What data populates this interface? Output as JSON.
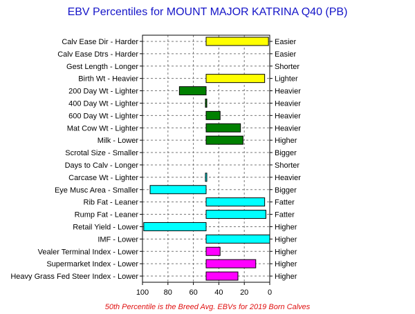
{
  "chart_data": {
    "type": "bar",
    "title": "EBV Percentiles for MOUNT MAJOR KATRINA Q40 (PB)",
    "footnote": "50th Percentile is the Breed Avg. EBVs for 2019 Born Calves",
    "xlim": [
      100,
      0
    ],
    "xticks": [
      100,
      80,
      60,
      40,
      20,
      0
    ],
    "baseline": 50,
    "grid": true,
    "colors": {
      "calving": "#ffff00",
      "growth": "#008000",
      "carcase": "#00ffff",
      "index": "#ff00ff"
    },
    "traits": [
      {
        "left": "Calv Ease Dir - Harder",
        "right": "Easier",
        "value": 1,
        "group": "calving"
      },
      {
        "left": "Calv Ease Dtrs - Harder",
        "right": "Easier",
        "value": null,
        "group": "calving"
      },
      {
        "left": "Gest Length - Longer",
        "right": "Shorter",
        "value": null,
        "group": "calving"
      },
      {
        "left": "Birth Wt - Heavier",
        "right": "Lighter",
        "value": 4,
        "group": "calving"
      },
      {
        "left": "200 Day Wt - Lighter",
        "right": "Heavier",
        "value": 71,
        "group": "growth"
      },
      {
        "left": "400 Day Wt - Lighter",
        "right": "Heavier",
        "value": 49,
        "group": "growth"
      },
      {
        "left": "600 Day Wt - Lighter",
        "right": "Heavier",
        "value": 39,
        "group": "growth"
      },
      {
        "left": "Mat Cow Wt - Lighter",
        "right": "Heavier",
        "value": 23,
        "group": "growth"
      },
      {
        "left": "Milk - Lower",
        "right": "Higher",
        "value": 21,
        "group": "growth"
      },
      {
        "left": "Scrotal Size - Smaller",
        "right": "Bigger",
        "value": null,
        "group": "growth"
      },
      {
        "left": "Days to Calv - Longer",
        "right": "Shorter",
        "value": null,
        "group": "growth"
      },
      {
        "left": "Carcase Wt - Lighter",
        "right": "Heavier",
        "value": 49,
        "group": "carcase"
      },
      {
        "left": "Eye Musc Area - Smaller",
        "right": "Bigger",
        "value": 94,
        "group": "carcase"
      },
      {
        "left": "Rib Fat - Leaner",
        "right": "Fatter",
        "value": 4,
        "group": "carcase"
      },
      {
        "left": "Rump Fat - Leaner",
        "right": "Fatter",
        "value": 3,
        "group": "carcase"
      },
      {
        "left": "Retail Yield - Lower",
        "right": "Higher",
        "value": 99,
        "group": "carcase"
      },
      {
        "left": "IMF - Lower",
        "right": "Higher",
        "value": 0,
        "group": "carcase"
      },
      {
        "left": "Vealer Terminal Index - Lower",
        "right": "Higher",
        "value": 39,
        "group": "index"
      },
      {
        "left": "Supermarket Index - Lower",
        "right": "Higher",
        "value": 11,
        "group": "index"
      },
      {
        "left": "Heavy Grass Fed Steer Index - Lower",
        "right": "Higher",
        "value": 25,
        "group": "index"
      }
    ]
  }
}
